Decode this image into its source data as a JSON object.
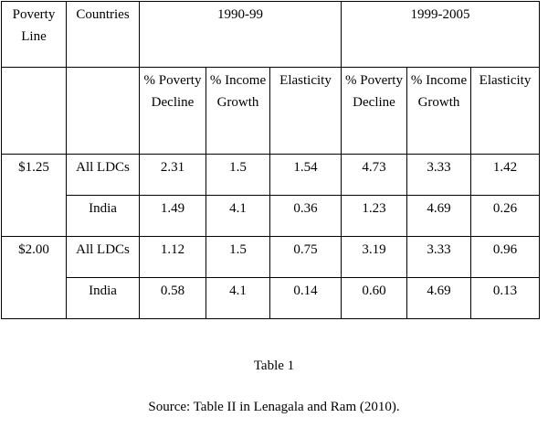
{
  "table": {
    "header1": [
      "Poverty Line",
      "Countries",
      "1990-99",
      "1999-2005"
    ],
    "header2": [
      "% Poverty Decline",
      "% Income Growth",
      "Elasticity",
      "% Poverty Decline",
      "% Income Growth",
      "Elasticity"
    ],
    "groups": [
      {
        "line": "$1.25",
        "rows": [
          {
            "country": "All LDCs",
            "values": [
              "2.31",
              "1.5",
              "1.54",
              "4.73",
              "3.33",
              "1.42"
            ]
          },
          {
            "country": "India",
            "values": [
              "1.49",
              "4.1",
              "0.36",
              "1.23",
              "4.69",
              "0.26"
            ]
          }
        ]
      },
      {
        "line": "$2.00",
        "rows": [
          {
            "country": "All LDCs",
            "values": [
              "1.12",
              "1.5",
              "0.75",
              "3.19",
              "3.33",
              "0.96"
            ]
          },
          {
            "country": "India",
            "values": [
              "0.58",
              "4.1",
              "0.14",
              "0.60",
              "4.69",
              "0.13"
            ]
          }
        ]
      }
    ]
  },
  "caption": {
    "title": "Table 1",
    "source": "Source: Table II in Lenagala and Ram (2010)."
  }
}
